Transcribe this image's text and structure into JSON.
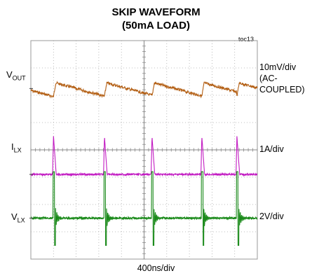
{
  "chart_data": {
    "type": "line",
    "title": "SKIP WAVEFORM",
    "subtitle": "(50mA LOAD)",
    "figure_id": "toc13",
    "xlabel": "400ns/div",
    "grid": true,
    "grid_divisions": {
      "x": 10,
      "y": 8
    },
    "time_per_div_ns": 400,
    "series": [
      {
        "name": "V",
        "subscript": "OUT",
        "scale_line1": "10mV/div",
        "scale_line2": "(AC-",
        "scale_line3": "COUPLED)",
        "color": "#b35f14",
        "pulse_times_div": [
          1.0,
          3.25,
          5.35,
          7.55,
          9.1
        ],
        "sawtooth_ripple_div": 0.5
      },
      {
        "name": "I",
        "subscript": "LX",
        "scale": "1A/div",
        "color": "#c21bc2",
        "pulse_times_div": [
          1.0,
          3.25,
          5.35,
          7.55,
          9.1
        ],
        "peak_div": 1.4
      },
      {
        "name": "V",
        "subscript": "LX",
        "scale": "2V/div",
        "color": "#1a8a1a",
        "pulse_times_div": [
          1.0,
          3.25,
          5.35,
          7.55,
          9.1
        ],
        "high_div": 1.7,
        "low_div": -1.0
      }
    ]
  }
}
